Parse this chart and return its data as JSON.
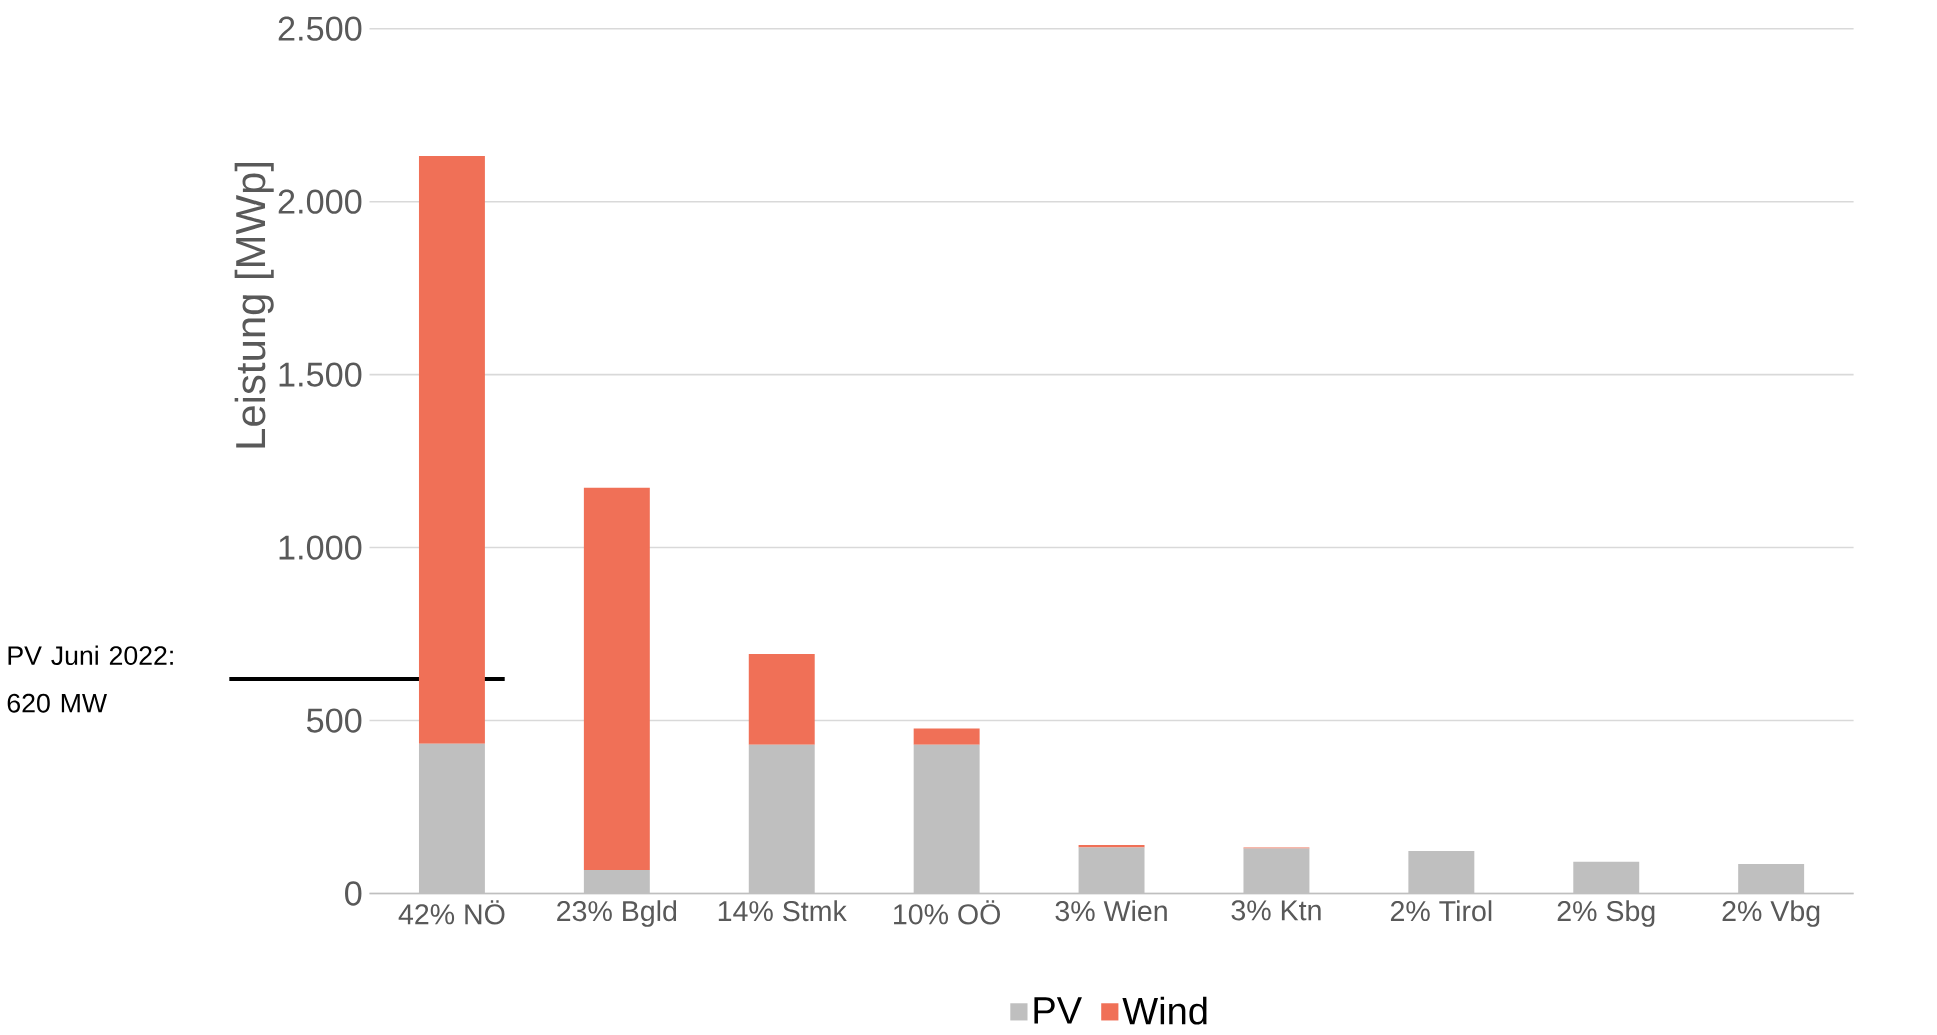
{
  "chart_data": {
    "type": "bar",
    "stacked": true,
    "ylabel": "Leistung [MWp]",
    "categories": [
      "42% NÖ",
      "23% Bgld",
      "14% Stmk",
      "10% OÖ",
      "3% Wien",
      "3% Ktn",
      "2% Tirol",
      "2% Sbg",
      "2% Vbg"
    ],
    "series": [
      {
        "name": "PV",
        "color": "#bfbfbf",
        "values": [
          433,
          68,
          430,
          430,
          133,
          130,
          123,
          92,
          85
        ]
      },
      {
        "name": "Wind",
        "color": "#f07057",
        "values": [
          1699,
          1105,
          262,
          47,
          7,
          3,
          0,
          0,
          0
        ]
      }
    ],
    "ylim": [
      0,
      2500
    ],
    "yticks": [
      0,
      500,
      {
        "value": 1000,
        "label": "1.000"
      },
      {
        "value": 1500,
        "label": "1.500"
      },
      {
        "value": 2000,
        "label": "2.000"
      },
      {
        "value": 2500,
        "label": "2.500"
      }
    ],
    "grid": "y",
    "legend": "bottom",
    "ref_lines": [
      {
        "axis": "y",
        "value": 620,
        "label": "PV Juni 2022: 620 MW",
        "color": "#000000"
      }
    ]
  }
}
